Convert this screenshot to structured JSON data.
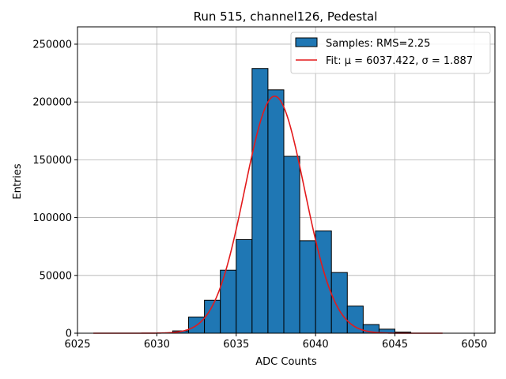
{
  "chart_data": {
    "type": "bar",
    "title": "Run 515, channel126, Pedestal",
    "xlabel": "ADC Counts",
    "ylabel": "Entries",
    "xlim": [
      6025,
      6051.3
    ],
    "ylim": [
      0,
      265000
    ],
    "x_ticks": [
      6025,
      6030,
      6035,
      6040,
      6045,
      6050
    ],
    "y_ticks": [
      0,
      50000,
      100000,
      150000,
      200000,
      250000
    ],
    "grid": true,
    "legend_position": "top-right",
    "bar_color": "#1f77b4",
    "fit_color": "#e31a1c",
    "bin_edges": [
      6026,
      6027,
      6028,
      6029,
      6030,
      6031,
      6032,
      6033,
      6034,
      6035,
      6036,
      6037,
      6038,
      6039,
      6040,
      6041,
      6042,
      6043,
      6044,
      6045,
      6046,
      6047,
      6048
    ],
    "counts": [
      0,
      0,
      0,
      0,
      0,
      2000,
      14000,
      28500,
      54500,
      81000,
      229000,
      210500,
      153000,
      80000,
      88500,
      52500,
      23500,
      7500,
      3500,
      1000,
      0,
      0
    ],
    "series": [
      {
        "name": "Samples: RMS=2.25",
        "kind": "histogram"
      },
      {
        "name": "Fit: μ = 6037.422, σ = 1.887",
        "kind": "gaussian",
        "mu": 6037.422,
        "sigma": 1.887,
        "amplitude": 205000,
        "x_range": [
          6026,
          6048
        ]
      }
    ]
  }
}
